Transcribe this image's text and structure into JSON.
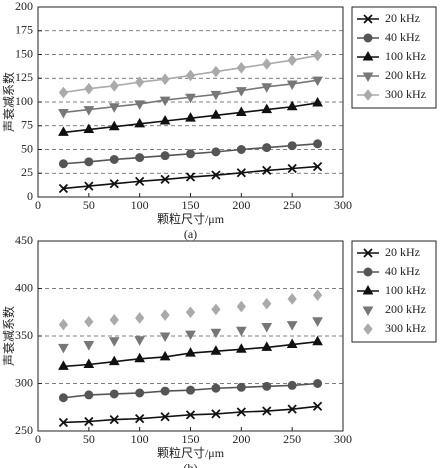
{
  "chart_data": [
    {
      "type": "line",
      "caption": "(a)",
      "x_label": "颗粒尺寸/μm",
      "y_label": "声衰减系数",
      "x": [
        25,
        50,
        75,
        100,
        125,
        150,
        175,
        200,
        225,
        250,
        275
      ],
      "xlim": [
        0,
        300
      ],
      "xticks": [
        0,
        50,
        100,
        150,
        200,
        250,
        300
      ],
      "ylim": [
        0,
        200
      ],
      "yticks": [
        0,
        25,
        50,
        75,
        100,
        125,
        150,
        175,
        200
      ],
      "grid": true,
      "legend": "upper right",
      "series": [
        {
          "name": "20 kHz",
          "color": "#111111",
          "marker": "x",
          "line": true,
          "values": [
            9,
            11.5,
            14,
            16.5,
            18.5,
            21,
            23,
            25.5,
            28,
            30,
            32
          ]
        },
        {
          "name": "40 kHz",
          "color": "#555555",
          "marker": "o",
          "line": true,
          "values": [
            35,
            37,
            39.5,
            41.5,
            43.5,
            45.5,
            47.5,
            50,
            52,
            54,
            56
          ]
        },
        {
          "name": "100 kHz",
          "color": "#111111",
          "marker": "^",
          "line": true,
          "values": [
            68,
            71,
            74,
            77,
            80,
            83,
            86,
            89,
            92,
            95,
            99
          ]
        },
        {
          "name": "200 kHz",
          "color": "#777777",
          "marker": "v",
          "line": true,
          "values": [
            89,
            92,
            95,
            98,
            102,
            105,
            108,
            112,
            116,
            119,
            123
          ]
        },
        {
          "name": "300 kHz",
          "color": "#aaaaaa",
          "marker": "D",
          "line": true,
          "values": [
            110,
            114,
            117,
            121,
            124,
            128,
            132,
            136,
            140,
            144,
            149
          ]
        }
      ]
    },
    {
      "type": "line",
      "caption": "(b)",
      "x_label": "颗粒尺寸/μm",
      "y_label": "声衰减系数",
      "x": [
        25,
        50,
        75,
        100,
        125,
        150,
        175,
        200,
        225,
        250,
        275
      ],
      "xlim": [
        0,
        300
      ],
      "xticks": [
        0,
        50,
        100,
        150,
        200,
        250,
        300
      ],
      "ylim": [
        250,
        450
      ],
      "yticks": [
        250,
        300,
        350,
        400,
        450
      ],
      "grid": true,
      "legend": "upper right",
      "series": [
        {
          "name": "20 kHz",
          "color": "#111111",
          "marker": "x",
          "line": true,
          "values": [
            259,
            260,
            262,
            263,
            265,
            267,
            268,
            270,
            271,
            273,
            276
          ]
        },
        {
          "name": "40 kHz",
          "color": "#555555",
          "marker": "o",
          "line": true,
          "values": [
            285,
            288,
            289,
            290,
            292,
            293,
            295,
            296,
            297,
            298,
            300
          ]
        },
        {
          "name": "100 kHz",
          "color": "#111111",
          "marker": "^",
          "line": true,
          "values": [
            318,
            320,
            323,
            326,
            328,
            332,
            334,
            336,
            338,
            341,
            344
          ]
        },
        {
          "name": "200 kHz",
          "color": "#777777",
          "marker": "v",
          "line": false,
          "values": [
            338,
            341,
            345,
            346,
            350,
            352,
            354,
            356,
            360,
            362,
            366
          ]
        },
        {
          "name": "300 kHz",
          "color": "#aaaaaa",
          "marker": "D",
          "line": false,
          "values": [
            362,
            365,
            367,
            369,
            372,
            375,
            378,
            381,
            384,
            389,
            393
          ]
        }
      ]
    }
  ]
}
